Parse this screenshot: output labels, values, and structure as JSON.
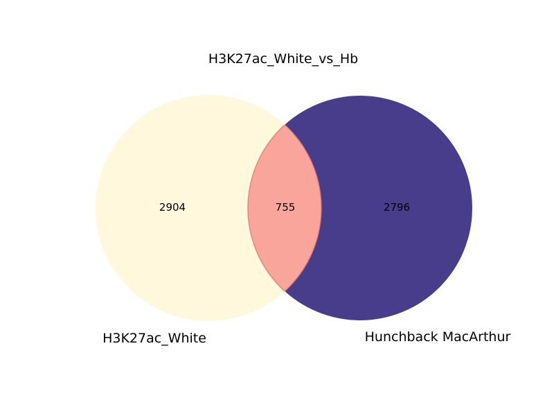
{
  "title": "H3K27ac_White_vs_Hb",
  "sets": [
    {
      "name": "H3K27ac_White",
      "only_count": "2904",
      "color": "#fff8dc"
    },
    {
      "name": "Hunchback MacArthur",
      "only_count": "2796",
      "color": "#483d8b"
    }
  ],
  "intersection": {
    "count": "755",
    "color": "#f9a59b",
    "edge_color": "#e07a70"
  }
}
